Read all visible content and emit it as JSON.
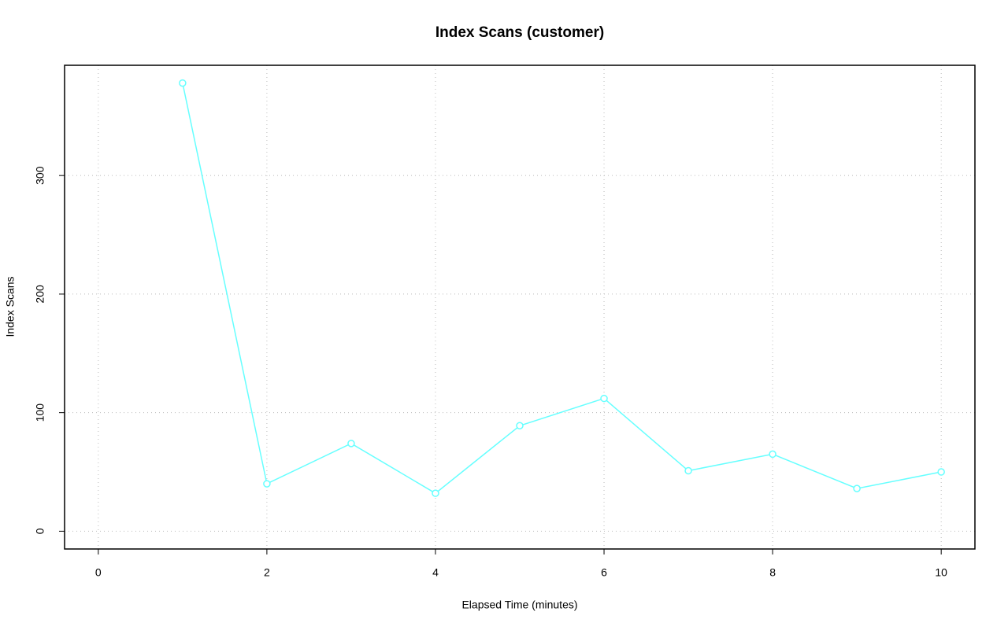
{
  "chart_data": {
    "type": "line",
    "title": "Index Scans (customer)",
    "x_label": "Elapsed Time (minutes)",
    "y_label": "Index Scans",
    "x": [
      1,
      2,
      3,
      4,
      5,
      6,
      7,
      8,
      9,
      10
    ],
    "values": [
      378,
      40,
      74,
      32,
      89,
      112,
      51,
      65,
      36,
      50
    ],
    "color": "#66ffff",
    "xlim": [
      -0.4,
      10.4
    ],
    "xticks": [
      0,
      2,
      4,
      6,
      8,
      10
    ],
    "ylim": [
      -15,
      393
    ],
    "yticks": [
      0,
      100,
      200,
      300
    ],
    "grid": true
  }
}
